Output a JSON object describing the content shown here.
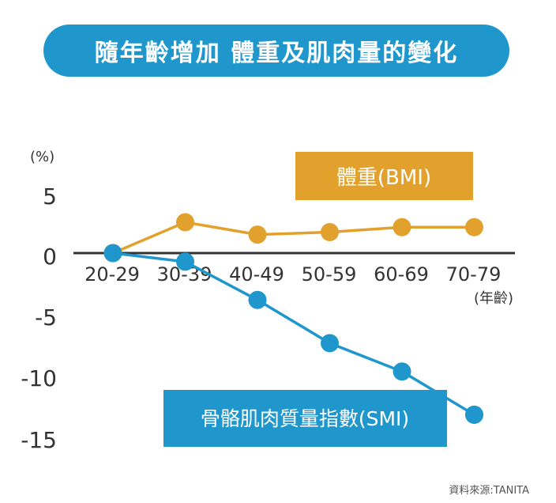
{
  "title": "隨年齡增加 體重及肌肉量的變化",
  "source": "資料來源:TANITA",
  "colors": {
    "title_bg": "#1f97cc",
    "bmi": "#e2a12c",
    "smi": "#1f97cc",
    "axis": "#333333"
  },
  "chart_data": {
    "type": "line",
    "categories": [
      "20-29",
      "30-39",
      "40-49",
      "50-59",
      "60-69",
      "70-79"
    ],
    "ylabel": "(%)",
    "xlabel": "(年齡)",
    "yticks": [
      "5",
      "0",
      "-5",
      "-10",
      "-15"
    ],
    "ylim": [
      -15,
      5
    ],
    "grid": false,
    "series": [
      {
        "name": "體重(BMI)",
        "values": [
          0,
          2.5,
          1.5,
          1.7,
          2.1,
          2.1
        ]
      },
      {
        "name": "骨骼肌肉質量指數(SMI)",
        "values": [
          0,
          -0.7,
          -3.8,
          -7.3,
          -9.6,
          -13.1
        ]
      }
    ]
  }
}
